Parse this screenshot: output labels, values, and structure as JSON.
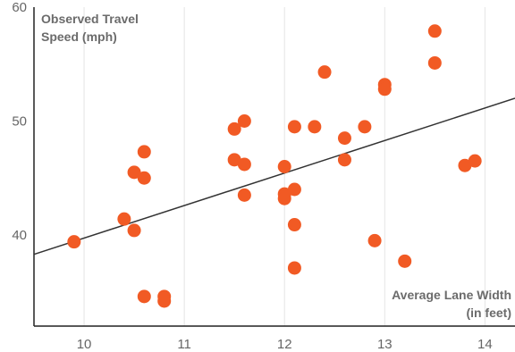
{
  "chart_data": {
    "type": "scatter",
    "title": "",
    "xlabel": "",
    "ylabel": "",
    "annotations": {
      "y_title": [
        "Observed Travel",
        "Speed (mph)"
      ],
      "x_title": [
        "Average Lane Width",
        "(in feet)"
      ]
    },
    "xlim": [
      9.5,
      14.3
    ],
    "ylim": [
      32,
      60
    ],
    "x_ticks": [
      10,
      11,
      12,
      13,
      14
    ],
    "x_tick_labels": [
      "10",
      "11",
      "12",
      "13",
      "14"
    ],
    "y_ticks": [
      40,
      50,
      60
    ],
    "y_tick_labels": [
      "40",
      "50",
      "60"
    ],
    "grid": {
      "vertical": true,
      "horizontal": false
    },
    "marker_color": "#f15a24",
    "trendline": {
      "x": [
        9.5,
        14.3
      ],
      "y": [
        38.3,
        52.0
      ],
      "color": "#333333"
    },
    "points": [
      {
        "x": 9.9,
        "y": 39.4
      },
      {
        "x": 10.4,
        "y": 41.4
      },
      {
        "x": 10.5,
        "y": 40.4
      },
      {
        "x": 10.5,
        "y": 45.5
      },
      {
        "x": 10.6,
        "y": 47.3
      },
      {
        "x": 10.6,
        "y": 45.0
      },
      {
        "x": 10.6,
        "y": 34.6
      },
      {
        "x": 10.8,
        "y": 34.6
      },
      {
        "x": 10.8,
        "y": 34.2
      },
      {
        "x": 11.5,
        "y": 49.3
      },
      {
        "x": 11.5,
        "y": 46.6
      },
      {
        "x": 11.6,
        "y": 50.0
      },
      {
        "x": 11.6,
        "y": 46.2
      },
      {
        "x": 11.6,
        "y": 43.5
      },
      {
        "x": 12.0,
        "y": 46.0
      },
      {
        "x": 12.0,
        "y": 43.6
      },
      {
        "x": 12.0,
        "y": 43.2
      },
      {
        "x": 12.1,
        "y": 49.5
      },
      {
        "x": 12.1,
        "y": 44.0
      },
      {
        "x": 12.1,
        "y": 40.9
      },
      {
        "x": 12.1,
        "y": 37.1
      },
      {
        "x": 12.3,
        "y": 49.5
      },
      {
        "x": 12.4,
        "y": 54.3
      },
      {
        "x": 12.6,
        "y": 48.5
      },
      {
        "x": 12.6,
        "y": 46.6
      },
      {
        "x": 12.8,
        "y": 49.5
      },
      {
        "x": 12.9,
        "y": 39.5
      },
      {
        "x": 13.0,
        "y": 53.2
      },
      {
        "x": 13.0,
        "y": 52.8
      },
      {
        "x": 13.2,
        "y": 37.7
      },
      {
        "x": 13.5,
        "y": 57.9
      },
      {
        "x": 13.5,
        "y": 55.1
      },
      {
        "x": 13.8,
        "y": 46.1
      },
      {
        "x": 13.9,
        "y": 46.5
      }
    ]
  }
}
